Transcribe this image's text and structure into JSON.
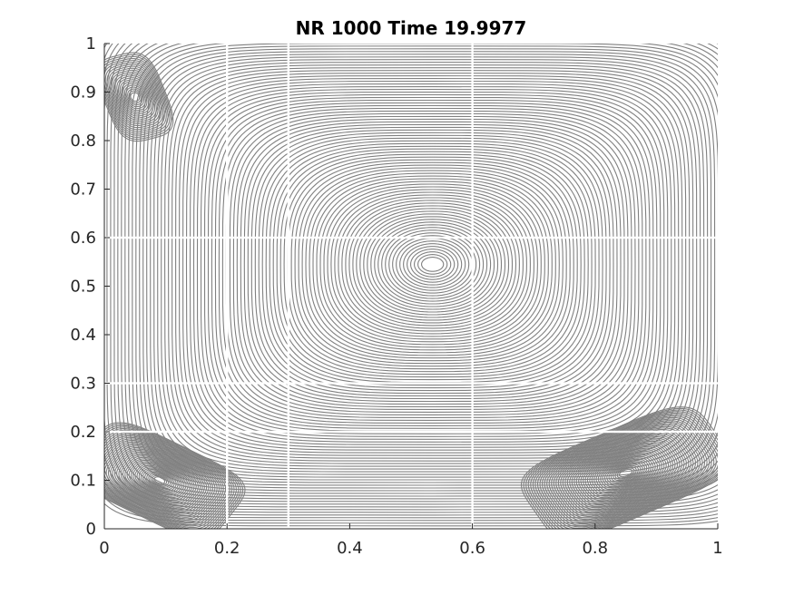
{
  "chart_data": {
    "type": "streamline",
    "title": "NR 1000 Time  19.9977",
    "xlabel": "",
    "ylabel": "",
    "xlim": [
      0,
      1
    ],
    "ylim": [
      0,
      1
    ],
    "xticks": [
      "0",
      "0.2",
      "0.4",
      "0.6",
      "0.8",
      "1"
    ],
    "yticks": [
      "0",
      "0.1",
      "0.2",
      "0.3",
      "0.4",
      "0.5",
      "0.6",
      "0.7",
      "0.8",
      "0.9",
      "1"
    ],
    "xtick_values": [
      0,
      0.2,
      0.4,
      0.6,
      0.8,
      1
    ],
    "ytick_values": [
      0,
      0.1,
      0.2,
      0.3,
      0.4,
      0.5,
      0.6,
      0.7,
      0.8,
      0.9,
      1
    ],
    "line_color": "#808080",
    "grid": false,
    "vortices": [
      {
        "name": "primary",
        "x": 0.535,
        "y": 0.545
      },
      {
        "name": "bottom-left",
        "x": 0.09,
        "y": 0.1
      },
      {
        "name": "bottom-right",
        "x": 0.85,
        "y": 0.115
      },
      {
        "name": "top-left",
        "x": 0.05,
        "y": 0.89
      }
    ],
    "seed_gap_x": [
      0.2,
      0.3,
      0.6
    ],
    "seed_gap_y": [
      0.2,
      0.3,
      0.6
    ]
  }
}
